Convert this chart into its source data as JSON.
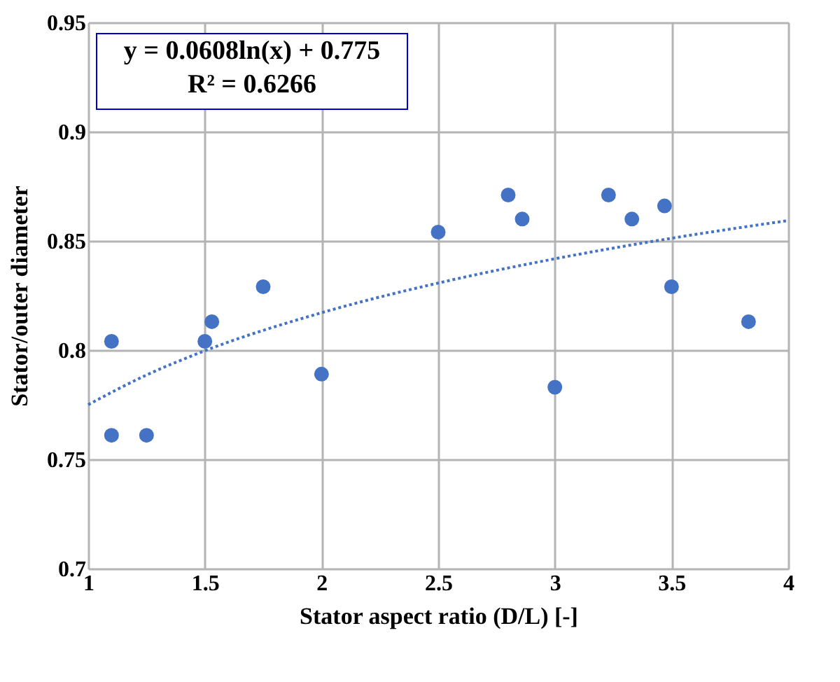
{
  "chart_data": {
    "type": "scatter",
    "xlabel": "Stator aspect ratio (D/L) [-]",
    "ylabel": "Stator/outer diameter",
    "annotations": [
      "y = 0.0608ln(x) + 0.775",
      "R² = 0.6266"
    ],
    "xlim": [
      1,
      4
    ],
    "xticks": [
      1,
      1.5,
      2,
      2.5,
      3,
      3.5,
      4
    ],
    "ylim": [
      0.7,
      0.95
    ],
    "yticks": [
      0.7,
      0.75,
      0.8,
      0.85,
      0.9,
      0.95
    ],
    "grid": true,
    "series": [
      {
        "type": "scatter",
        "marker": "circle",
        "color": "#4472c4",
        "x": [
          1.1,
          1.1,
          1.25,
          1.5,
          1.53,
          1.75,
          2.0,
          2.5,
          2.8,
          2.86,
          3.0,
          3.23,
          3.33,
          3.47,
          3.5,
          3.83
        ],
        "values": [
          0.804,
          0.761,
          0.761,
          0.804,
          0.813,
          0.829,
          0.789,
          0.854,
          0.871,
          0.86,
          0.783,
          0.871,
          0.86,
          0.866,
          0.829,
          0.813
        ]
      },
      {
        "type": "line",
        "marker": "none",
        "line_style": "dotted",
        "color": "#4472c4",
        "x": [
          1,
          1.25,
          1.5,
          2,
          2.5,
          3,
          3.5,
          4
        ],
        "values": [
          0.775,
          0.7886,
          0.7997,
          0.8171,
          0.8307,
          0.8418,
          0.8512,
          0.8593
        ]
      }
    ]
  }
}
